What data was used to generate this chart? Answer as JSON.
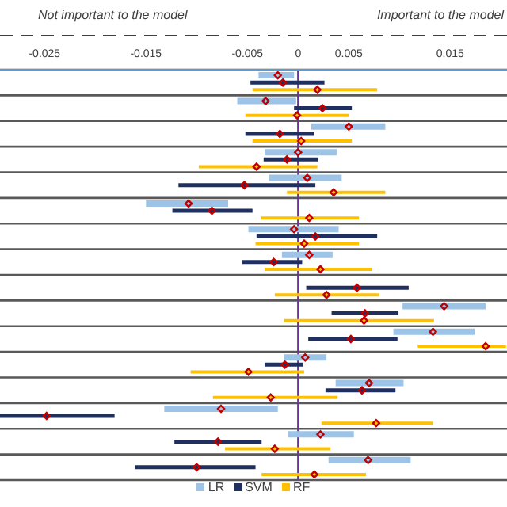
{
  "chart_data": {
    "type": "scatter",
    "orientation": "horizontal",
    "annotations": [
      "Not important to the model",
      "Important to the model"
    ],
    "categories": [
      null,
      null,
      null,
      null,
      null,
      null,
      null,
      null,
      null,
      null,
      null,
      null,
      null,
      null,
      null,
      null
    ],
    "series": [
      {
        "name": "LR",
        "color": "#9dc3e6",
        "values": [
          -0.002,
          -0.0032,
          0.005,
          0.0,
          0.0009,
          -0.0108,
          -0.0004,
          0.0011,
          null,
          0.0144,
          0.0133,
          0.0007,
          0.007,
          -0.0076,
          0.0022,
          0.0069
        ],
        "errors": [
          [
            -0.0039,
            -0.0004
          ],
          [
            -0.006,
            -0.0002
          ],
          [
            0.0013,
            0.0086
          ],
          [
            -0.0033,
            0.0038
          ],
          [
            -0.0029,
            0.0043
          ],
          [
            -0.015,
            -0.0069
          ],
          [
            -0.0049,
            0.004
          ],
          [
            -0.0016,
            0.0034
          ],
          null,
          [
            0.0103,
            0.0185
          ],
          [
            0.0094,
            0.0174
          ],
          [
            -0.0014,
            0.0028
          ],
          [
            0.0037,
            0.0104
          ],
          [
            -0.0132,
            -0.002
          ],
          [
            -0.001,
            0.0055
          ],
          [
            0.003,
            0.0111
          ]
        ]
      },
      {
        "name": "SVM",
        "color": "#1f2f5f",
        "values": [
          -0.0015,
          0.0024,
          -0.0018,
          -0.0011,
          -0.0053,
          -0.0085,
          0.0017,
          -0.0024,
          0.0058,
          0.0066,
          0.0052,
          -0.0013,
          0.0063,
          -0.0248,
          -0.0079,
          -0.01
        ],
        "errors": [
          [
            -0.0047,
            0.0026
          ],
          [
            -0.0004,
            0.0053
          ],
          [
            -0.0052,
            0.0016
          ],
          [
            -0.0034,
            0.002
          ],
          [
            -0.0118,
            0.0017
          ],
          [
            -0.0124,
            -0.0045
          ],
          [
            -0.0041,
            0.0078
          ],
          [
            -0.0055,
            0.0004
          ],
          [
            0.0008,
            0.0109
          ],
          [
            0.0033,
            0.0099
          ],
          [
            0.001,
            0.0098
          ],
          [
            -0.0033,
            0.0005
          ],
          [
            0.0027,
            0.0096
          ],
          [
            -0.0294,
            -0.0181
          ],
          [
            -0.0122,
            -0.0036
          ],
          [
            -0.0161,
            -0.0042
          ]
        ]
      },
      {
        "name": "RF",
        "color": "#ffc000",
        "values": [
          0.0019,
          -0.0001,
          0.0003,
          -0.0041,
          0.0035,
          0.0011,
          0.0006,
          0.0022,
          0.0028,
          0.0065,
          0.0185,
          -0.0049,
          -0.0027,
          0.0077,
          -0.0023,
          0.0016
        ],
        "errors": [
          [
            -0.0045,
            0.0078
          ],
          [
            -0.0052,
            0.005
          ],
          [
            -0.0045,
            0.0053
          ],
          [
            -0.0098,
            0.0019
          ],
          [
            -0.0011,
            0.0086
          ],
          [
            -0.0037,
            0.006
          ],
          [
            -0.0042,
            0.006
          ],
          [
            -0.0033,
            0.0073
          ],
          [
            -0.0023,
            0.008
          ],
          [
            -0.0014,
            0.0134
          ],
          [
            0.0118,
            0.0205
          ],
          [
            -0.0106,
            0.0006
          ],
          [
            -0.0084,
            0.0039
          ],
          [
            0.0023,
            0.0133
          ],
          [
            -0.0072,
            0.0032
          ],
          [
            -0.0036,
            0.0067
          ]
        ]
      }
    ],
    "xlim": [
      -0.0294,
      0.0206
    ],
    "xticks": [
      -0.025,
      -0.015,
      -0.005,
      0,
      0.005,
      0.015
    ],
    "ref_lines": [
      {
        "axis": "x",
        "value": 0,
        "color": "#7030a0"
      }
    ],
    "grid": "y",
    "legend": "bottom",
    "marker": "diamond"
  }
}
